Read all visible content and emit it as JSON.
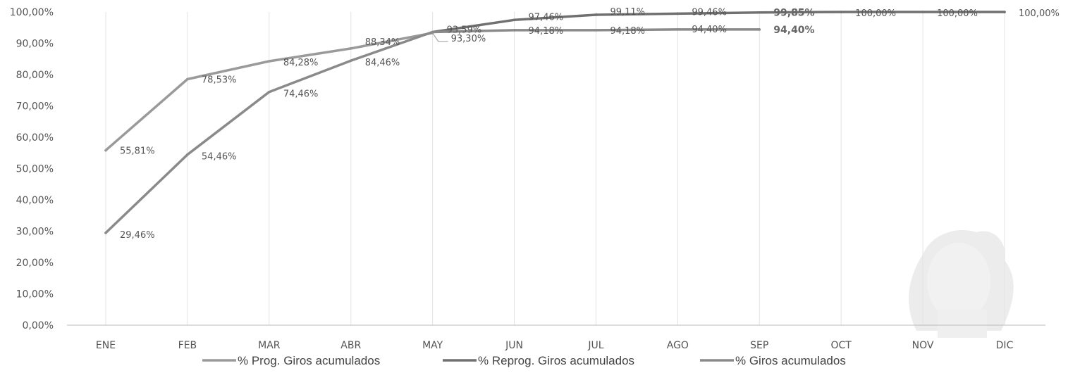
{
  "chart_data": {
    "type": "line",
    "categories": [
      "ENE",
      "FEB",
      "MAR",
      "ABR",
      "MAY",
      "JUN",
      "JUL",
      "AGO",
      "SEP",
      "OCT",
      "NOV",
      "DIC"
    ],
    "ylim": [
      0,
      100
    ],
    "yticks": [
      "0,00%",
      "10,00%",
      "20,00%",
      "30,00%",
      "40,00%",
      "50,00%",
      "60,00%",
      "70,00%",
      "80,00%",
      "90,00%",
      "100,00%"
    ],
    "grid": "vertical",
    "legend": "bottom",
    "series": [
      {
        "name": "% Prog. Giros acumulados",
        "color": "#9a9a9a",
        "values": [
          55.81,
          78.53,
          84.28,
          88.34,
          93.3,
          null,
          null,
          null,
          null,
          null,
          null,
          null
        ],
        "labels": [
          "55,81%",
          "78,53%",
          "84,28%",
          "88,34%",
          "93,30%",
          "",
          "",
          "",
          "",
          "",
          "",
          ""
        ]
      },
      {
        "name": "% Reprog. Giros acumulados",
        "color": "#707070",
        "values": [
          null,
          null,
          null,
          null,
          93.59,
          97.46,
          99.11,
          99.46,
          99.85,
          100.0,
          100.0,
          100.0
        ],
        "labels": [
          "",
          "",
          "",
          "",
          "93,59%",
          "97,46%",
          "99,11%",
          "99,46%",
          "99,85%",
          "100,00%",
          "100,00%",
          "100,00%"
        ]
      },
      {
        "name": "% Giros acumulados",
        "color": "#8a8a8a",
        "values": [
          29.46,
          54.46,
          74.46,
          84.46,
          93.59,
          94.18,
          94.18,
          94.4,
          94.4,
          null,
          null,
          null
        ],
        "labels": [
          "29,46%",
          "54,46%",
          "74,46%",
          "84,46%",
          "",
          "94,18%",
          "94,18%",
          "94,40%",
          "94,40%",
          "",
          "",
          ""
        ]
      }
    ]
  }
}
